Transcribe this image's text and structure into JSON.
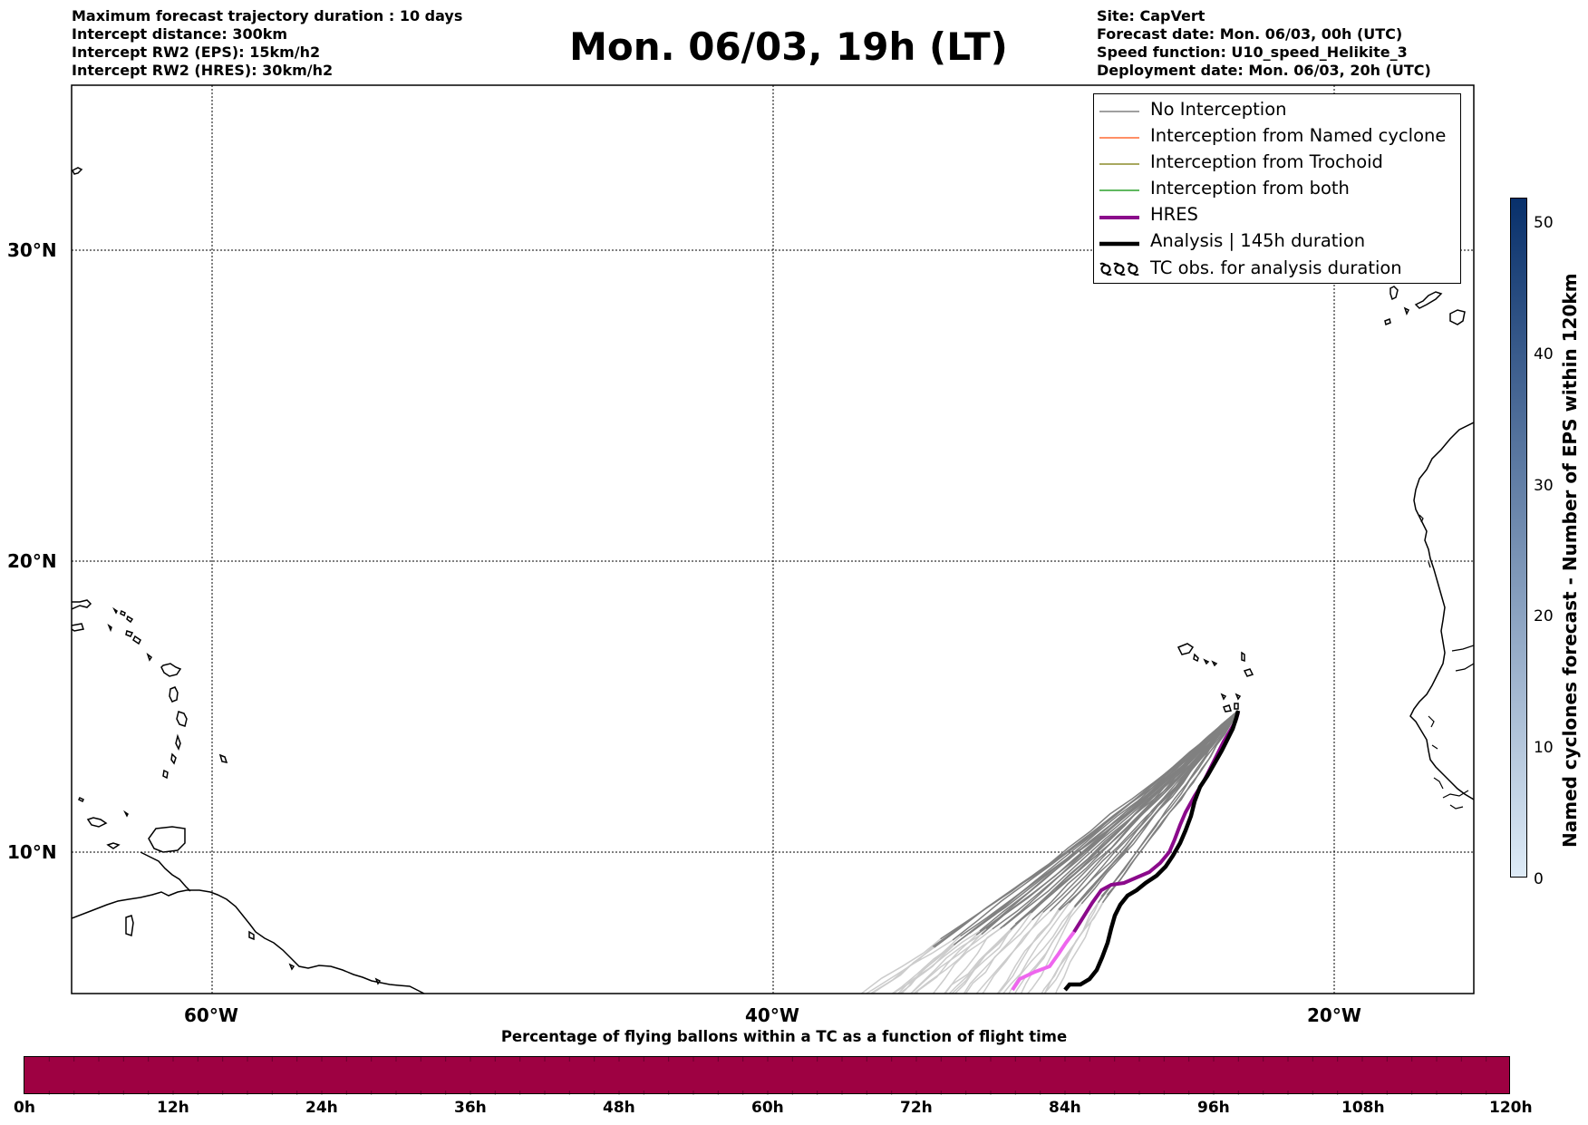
{
  "header_left": {
    "lines": [
      "Maximum forecast trajectory duration : 10 days",
      "Intercept distance: 300km",
      "Intercept RW2 (EPS):  15km/h2",
      "Intercept RW2 (HRES): 30km/h2"
    ]
  },
  "header_right": {
    "lines": [
      "Site: CapVert",
      "Forecast date: Mon. 06/03, 00h (UTC)",
      "Speed function: U10_speed_Helikite_3",
      "Deployment date: Mon. 06/03, 20h (UTC)"
    ]
  },
  "title": "Mon. 06/03, 19h (LT)",
  "map": {
    "lat_labels": [
      "30°N",
      "20°N",
      "10°N"
    ],
    "lon_labels": [
      "60°W",
      "40°W",
      "20°W"
    ],
    "colors": {
      "no_interception": "#808080",
      "named_cyclone": "#ff6a33",
      "trochoid": "#8b8b2a",
      "both": "#2ca02c",
      "hres": "#8b0a8b",
      "analysis": "#000000",
      "early_trajectories": "#cccccc",
      "hres_early": "#ee66ee"
    }
  },
  "legend": {
    "items": [
      {
        "label": "No Interception",
        "icon": "line"
      },
      {
        "label": "Interception from Named cyclone",
        "icon": "line"
      },
      {
        "label": "Interception from Trochoid",
        "icon": "line"
      },
      {
        "label": "Interception from both",
        "icon": "line"
      },
      {
        "label": "HRES",
        "icon": "thick-line"
      },
      {
        "label": "Analysis | 145h duration",
        "icon": "thick-line"
      },
      {
        "label": "TC obs. for analysis duration",
        "icon": "cyclone-symbol"
      }
    ]
  },
  "colorbar_right": {
    "label": "Named cyclones forecast - Number of EPS within 120km",
    "ticks": [
      "0",
      "10",
      "20",
      "30",
      "40",
      "50"
    ],
    "color_low": "#deebf7",
    "color_high": "#08306b"
  },
  "bottom_colorbar": {
    "title": "Percentage of flying ballons within a TC as a function of flight time",
    "ticks": [
      "0h",
      "12h",
      "24h",
      "36h",
      "48h",
      "60h",
      "72h",
      "84h",
      "96h",
      "108h",
      "120h"
    ],
    "fill_color": "#9e0142"
  }
}
